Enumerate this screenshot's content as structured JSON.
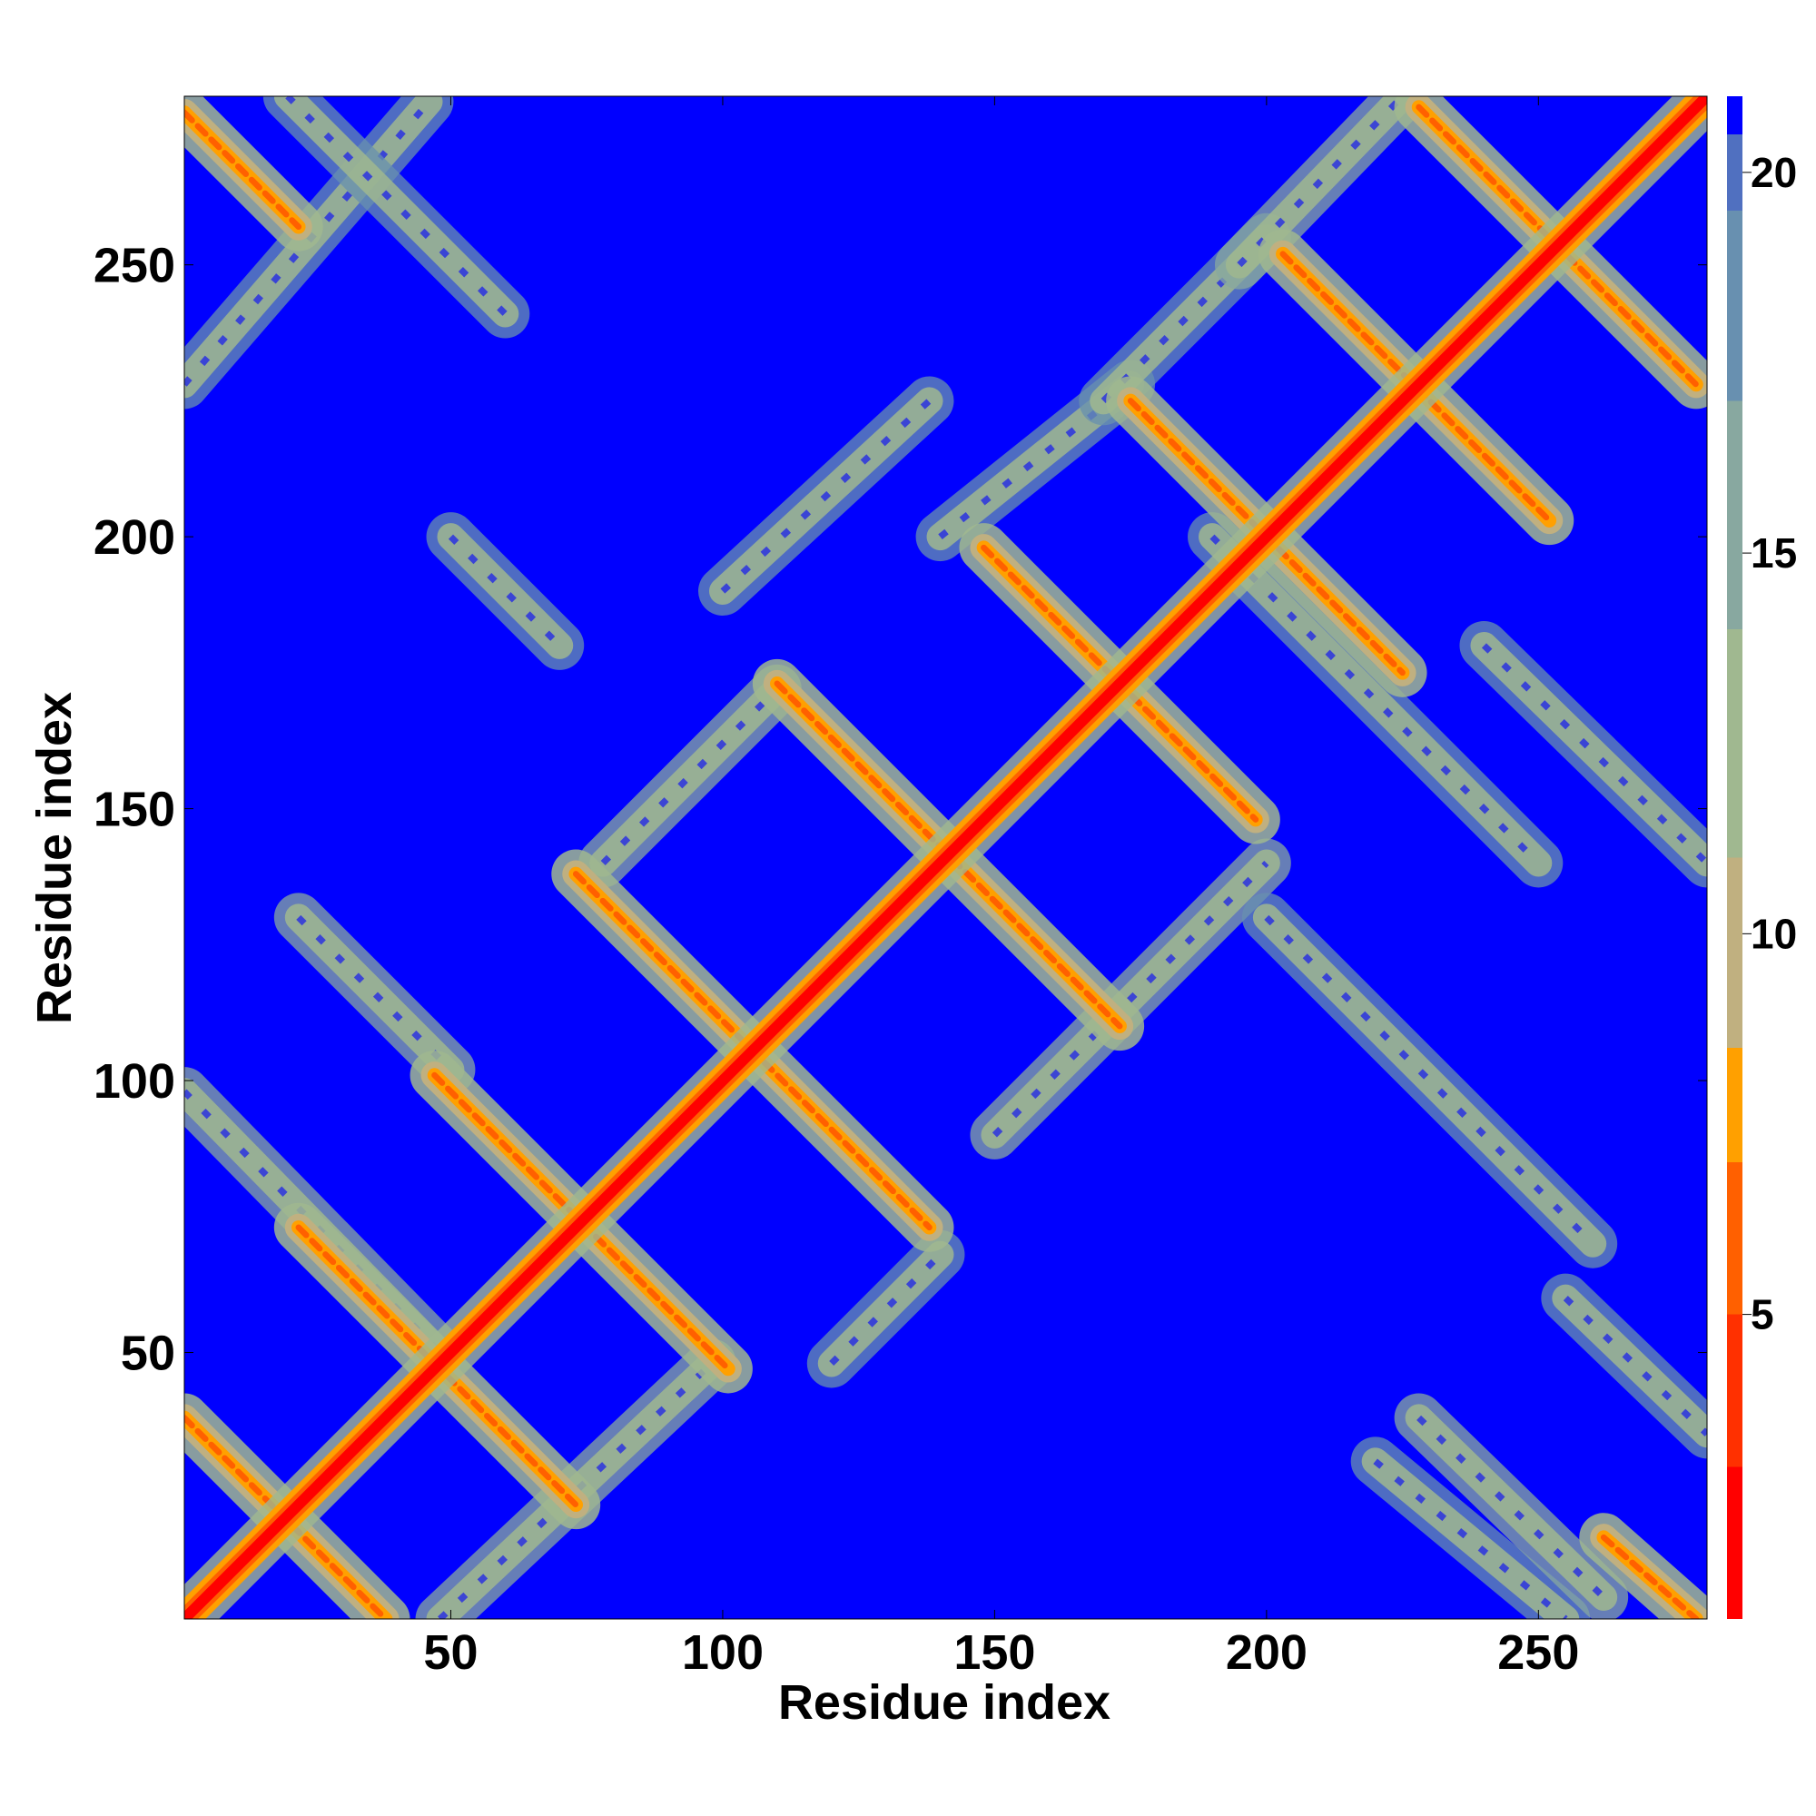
{
  "chart_data": {
    "type": "heatmap",
    "title": "",
    "xlabel": "Residue index",
    "ylabel": "Residue index",
    "n_residues": 281,
    "xlim": [
      1,
      281
    ],
    "ylim": [
      1,
      281
    ],
    "xticks": [
      50,
      100,
      150,
      200,
      250
    ],
    "yticks": [
      50,
      100,
      150,
      200,
      250
    ],
    "colorbar": {
      "range": [
        1,
        21
      ],
      "ticks": [
        5,
        10,
        15,
        20
      ],
      "colors": [
        {
          "value": 1,
          "color": "#ff0000"
        },
        {
          "value": 3,
          "color": "#ff3000"
        },
        {
          "value": 5,
          "color": "#ff6000"
        },
        {
          "value": 7,
          "color": "#ffa000"
        },
        {
          "value": 8.5,
          "color": "#c0b080"
        },
        {
          "value": 11,
          "color": "#a0b890"
        },
        {
          "value": 14,
          "color": "#88a8a0"
        },
        {
          "value": 17,
          "color": "#6890b0"
        },
        {
          "value": 19.5,
          "color": "#5070c0"
        },
        {
          "value": 20.5,
          "color": "#0000ff"
        }
      ]
    },
    "background_color": "#0000ff",
    "features": {
      "main_diagonal": {
        "from": [
          1,
          1
        ],
        "to": [
          281,
          281
        ],
        "value": 1
      },
      "strong_anti_diagonal_bands": [
        {
          "from": [
            1,
            38
          ],
          "to": [
            38,
            1
          ],
          "value": 5
        },
        {
          "from": [
            1,
            278
          ],
          "to": [
            22,
            257
          ],
          "value": 5
        },
        {
          "from": [
            22,
            73
          ],
          "to": [
            73,
            22
          ],
          "value": 5
        },
        {
          "from": [
            47,
            101
          ],
          "to": [
            101,
            47
          ],
          "value": 5
        },
        {
          "from": [
            73,
            138
          ],
          "to": [
            138,
            73
          ],
          "value": 5
        },
        {
          "from": [
            110,
            173
          ],
          "to": [
            173,
            110
          ],
          "value": 5
        },
        {
          "from": [
            148,
            198
          ],
          "to": [
            198,
            148
          ],
          "value": 5
        },
        {
          "from": [
            175,
            225
          ],
          "to": [
            225,
            175
          ],
          "value": 5
        },
        {
          "from": [
            203,
            252
          ],
          "to": [
            252,
            203
          ],
          "value": 5
        },
        {
          "from": [
            228,
            279
          ],
          "to": [
            279,
            228
          ],
          "value": 5
        },
        {
          "from": [
            262,
            16
          ],
          "to": [
            279,
            1
          ],
          "value": 6
        }
      ],
      "weak_bands": [
        {
          "from": [
            1,
            98
          ],
          "to": [
            48,
            50
          ],
          "value": 13
        },
        {
          "from": [
            1,
            228
          ],
          "to": [
            46,
            280
          ],
          "value": 14
        },
        {
          "from": [
            20,
            281
          ],
          "to": [
            60,
            241
          ],
          "value": 14
        },
        {
          "from": [
            50,
            200
          ],
          "to": [
            70,
            180
          ],
          "value": 15
        },
        {
          "from": [
            48,
            1
          ],
          "to": [
            98,
            48
          ],
          "value": 13
        },
        {
          "from": [
            22,
            130
          ],
          "to": [
            50,
            102
          ],
          "value": 13
        },
        {
          "from": [
            78,
            140
          ],
          "to": [
            110,
            172
          ],
          "value": 13
        },
        {
          "from": [
            100,
            190
          ],
          "to": [
            138,
            225
          ],
          "value": 14
        },
        {
          "from": [
            120,
            48
          ],
          "to": [
            140,
            68
          ],
          "value": 14
        },
        {
          "from": [
            140,
            200
          ],
          "to": [
            175,
            228
          ],
          "value": 14
        },
        {
          "from": [
            150,
            90
          ],
          "to": [
            200,
            140
          ],
          "value": 13
        },
        {
          "from": [
            170,
            225
          ],
          "to": [
            200,
            255
          ],
          "value": 14
        },
        {
          "from": [
            195,
            250
          ],
          "to": [
            225,
            281
          ],
          "value": 13
        },
        {
          "from": [
            200,
            130
          ],
          "to": [
            260,
            70
          ],
          "value": 15
        },
        {
          "from": [
            190,
            200
          ],
          "to": [
            250,
            140
          ],
          "value": 14
        },
        {
          "from": [
            220,
            30
          ],
          "to": [
            255,
            1
          ],
          "value": 14
        },
        {
          "from": [
            240,
            180
          ],
          "to": [
            281,
            140
          ],
          "value": 15
        },
        {
          "from": [
            255,
            60
          ],
          "to": [
            281,
            35
          ],
          "value": 15
        },
        {
          "from": [
            228,
            38
          ],
          "to": [
            262,
            5
          ],
          "value": 13
        }
      ]
    }
  }
}
